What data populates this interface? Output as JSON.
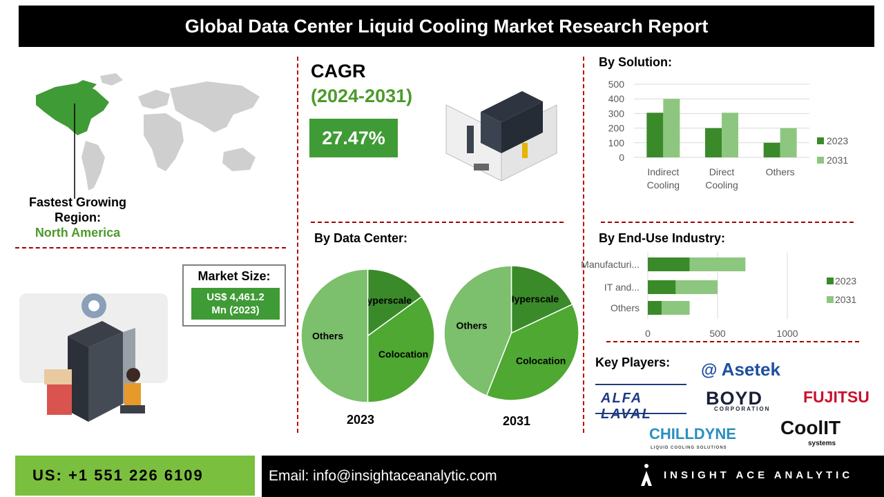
{
  "header": {
    "title": "Global Data Center Liquid Cooling Market Research Report"
  },
  "region": {
    "label_line1": "Fastest Growing",
    "label_line2": "Region:",
    "value": "North America"
  },
  "cagr": {
    "label": "CAGR",
    "period": "(2024-2031)",
    "value": "27.47%"
  },
  "market_size": {
    "label": "Market Size:",
    "value_line1": "US$ 4,461.2",
    "value_line2": "Mn (2023)"
  },
  "solution": {
    "title": "By Solution:"
  },
  "data_center": {
    "title": "By Data Center:"
  },
  "end_use": {
    "title": "By End-Use Industry:"
  },
  "key_players": {
    "title": "Key Players:",
    "logos": [
      "Asetek",
      "ALFA LAVAL",
      "BOYD",
      "CORPORATION",
      "FUJITSU",
      "CHILLDYNE",
      "LIQUID COOLING SOLUTIONS",
      "CoolIT",
      "systems"
    ]
  },
  "footer": {
    "phone": "US: +1 551 226 6109",
    "email": "Email: info@insightaceanalytic.com",
    "brand": "INSIGHT ACE ANALYTIC"
  },
  "colors": {
    "dark_green": "#3a8a2a",
    "mid_green": "#4ea832",
    "light_green": "#8dc77f",
    "pie_light": "#7cbf6c",
    "accent_red": "#c00000"
  },
  "chart_data": [
    {
      "type": "bar",
      "title": "By Solution:",
      "categories": [
        "Indirect Cooling",
        "Direct Cooling",
        "Others"
      ],
      "category_lines": [
        [
          "Indirect",
          "Cooling"
        ],
        [
          "Direct",
          "Cooling"
        ],
        [
          "Others"
        ]
      ],
      "series": [
        {
          "name": "2023",
          "values": [
            305,
            200,
            100
          ]
        },
        {
          "name": "2031",
          "values": [
            400,
            305,
            200
          ]
        }
      ],
      "ylim": [
        0,
        500
      ],
      "yticks": [
        0,
        100,
        200,
        300,
        400,
        500
      ],
      "grid": true,
      "legend": "right"
    },
    {
      "type": "bar",
      "orientation": "horizontal",
      "stacked": true,
      "title": "By End-Use Industry:",
      "categories": [
        "Manufacturi...",
        "IT and...",
        "Others"
      ],
      "series": [
        {
          "name": "2023",
          "values": [
            300,
            200,
            100
          ]
        },
        {
          "name": "2031",
          "values": [
            400,
            300,
            200
          ]
        }
      ],
      "xlim": [
        0,
        1000
      ],
      "xticks": [
        0,
        500,
        1000
      ],
      "grid": true,
      "legend": "right"
    },
    {
      "type": "pie",
      "title": "2023",
      "labels": [
        "Hyperscale",
        "Colocation",
        "Others"
      ],
      "values": [
        15,
        35,
        50
      ]
    },
    {
      "type": "pie",
      "title": "2031",
      "labels": [
        "Hyperscale",
        "Colocation",
        "Others"
      ],
      "values": [
        18,
        38,
        44
      ]
    }
  ]
}
